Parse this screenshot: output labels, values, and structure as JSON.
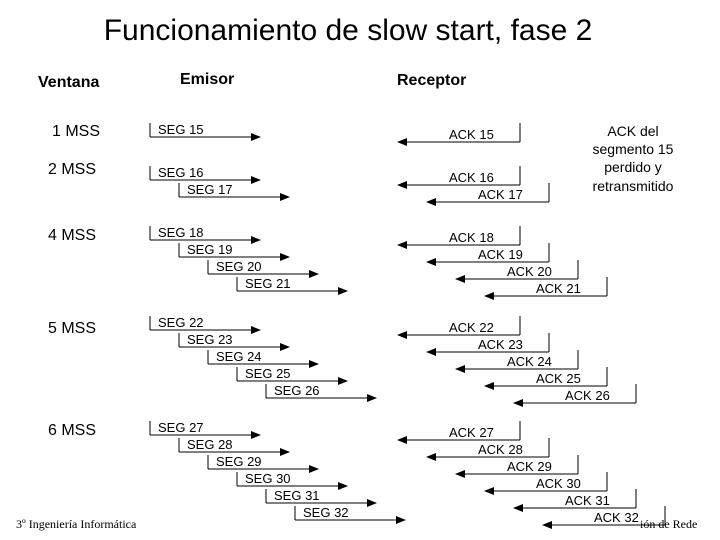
{
  "title": "Funcionamiento de slow start, fase 2",
  "headers": {
    "window": "Ventana",
    "sender": "Emisor",
    "receiver": "Receptor"
  },
  "windows": [
    "1 MSS",
    "2 MSS",
    "4 MSS",
    "5 MSS",
    "6 MSS"
  ],
  "note": "ACK del segmento 15 perdido y retransmitido",
  "footer": {
    "left": "3º Ingeniería Informática",
    "right": "ión de Rede"
  },
  "groups": [
    {
      "segments": [
        "SEG 15"
      ],
      "acks": [
        "ACK 15"
      ]
    },
    {
      "segments": [
        "SEG 16",
        "SEG 17"
      ],
      "acks": [
        "ACK 16",
        "ACK 17"
      ]
    },
    {
      "segments": [
        "SEG 18",
        "SEG 19",
        "SEG 20",
        "SEG 21"
      ],
      "acks": [
        "ACK 18",
        "ACK 19",
        "ACK 20",
        "ACK 21"
      ]
    },
    {
      "segments": [
        "SEG 22",
        "SEG 23",
        "SEG 24",
        "SEG 25",
        "SEG 26"
      ],
      "acks": [
        "ACK 22",
        "ACK 23",
        "ACK 24",
        "ACK 25",
        "ACK 26"
      ]
    },
    {
      "segments": [
        "SEG 27",
        "SEG 28",
        "SEG 29",
        "SEG 30",
        "SEG 31",
        "SEG 32"
      ],
      "acks": [
        "ACK 27",
        "ACK 28",
        "ACK 29",
        "ACK 30",
        "ACK 31",
        "ACK 32"
      ]
    }
  ]
}
